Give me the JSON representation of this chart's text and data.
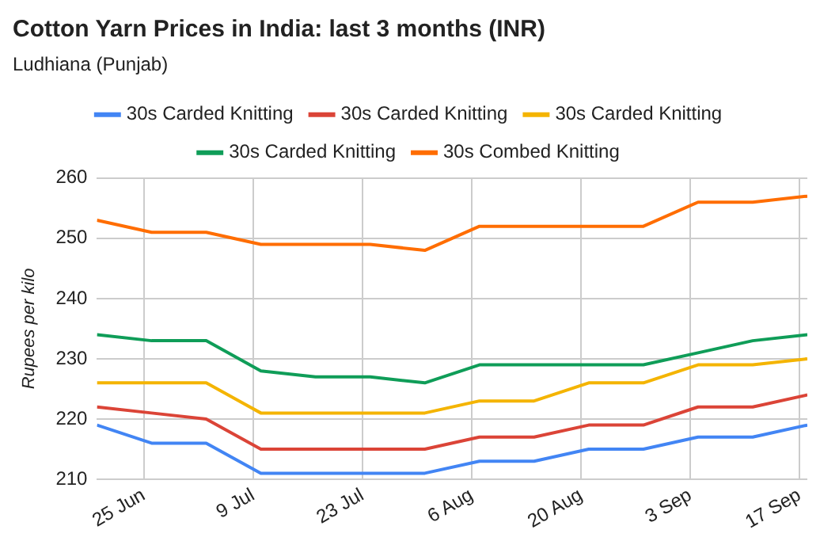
{
  "chart_data": {
    "type": "line",
    "title": "Cotton Yarn Prices in India: last 3 months (INR)",
    "subtitle": "Ludhiana (Punjab)",
    "ylabel": "Rupees per kilo",
    "x": [
      "--06-19",
      "--06-26",
      "--07-03",
      "--07-10",
      "--07-17",
      "--07-24",
      "--07-31",
      "--08-07",
      "--08-14",
      "--08-21",
      "--08-28",
      "--09-04",
      "--09-11",
      "--09-18"
    ],
    "series": [
      {
        "name": "30s Carded Knitting",
        "color": "#4285f4",
        "values": [
          219,
          216,
          216,
          211,
          211,
          211,
          211,
          213,
          213,
          215,
          215,
          217,
          217,
          219
        ]
      },
      {
        "name": "30s Carded Knitting",
        "color": "#db4437",
        "values": [
          222,
          221,
          220,
          215,
          215,
          215,
          215,
          217,
          217,
          219,
          219,
          222,
          222,
          224
        ]
      },
      {
        "name": "30s Carded Knitting",
        "color": "#f4b400",
        "values": [
          226,
          226,
          226,
          221,
          221,
          221,
          221,
          223,
          223,
          226,
          226,
          229,
          229,
          230
        ]
      },
      {
        "name": "30s Carded Knitting",
        "color": "#0f9d58",
        "values": [
          234,
          233,
          233,
          228,
          227,
          227,
          226,
          229,
          229,
          229,
          229,
          231,
          233,
          234
        ]
      },
      {
        "name": "30s Combed Knitting",
        "color": "#ff6d00",
        "values": [
          253,
          251,
          251,
          249,
          249,
          249,
          248,
          252,
          252,
          252,
          252,
          256,
          256,
          257
        ]
      }
    ],
    "xlim": [
      "--06-19",
      "--09-18"
    ],
    "xticks": [
      {
        "value": "--06-25",
        "label": "25 Jun"
      },
      {
        "value": "--07-09",
        "label": "9 Jul"
      },
      {
        "value": "--07-23",
        "label": "23 Jul"
      },
      {
        "value": "--08-06",
        "label": "6 Aug"
      },
      {
        "value": "--08-20",
        "label": "20 Aug"
      },
      {
        "value": "--09-03",
        "label": "3 Sep"
      },
      {
        "value": "--09-17",
        "label": "17 Sep"
      }
    ],
    "ylim": [
      210,
      260
    ],
    "yticks": [
      210,
      220,
      230,
      240,
      250,
      260
    ],
    "grid": true,
    "legend": "top",
    "marker": "none",
    "line_style": "solid"
  }
}
